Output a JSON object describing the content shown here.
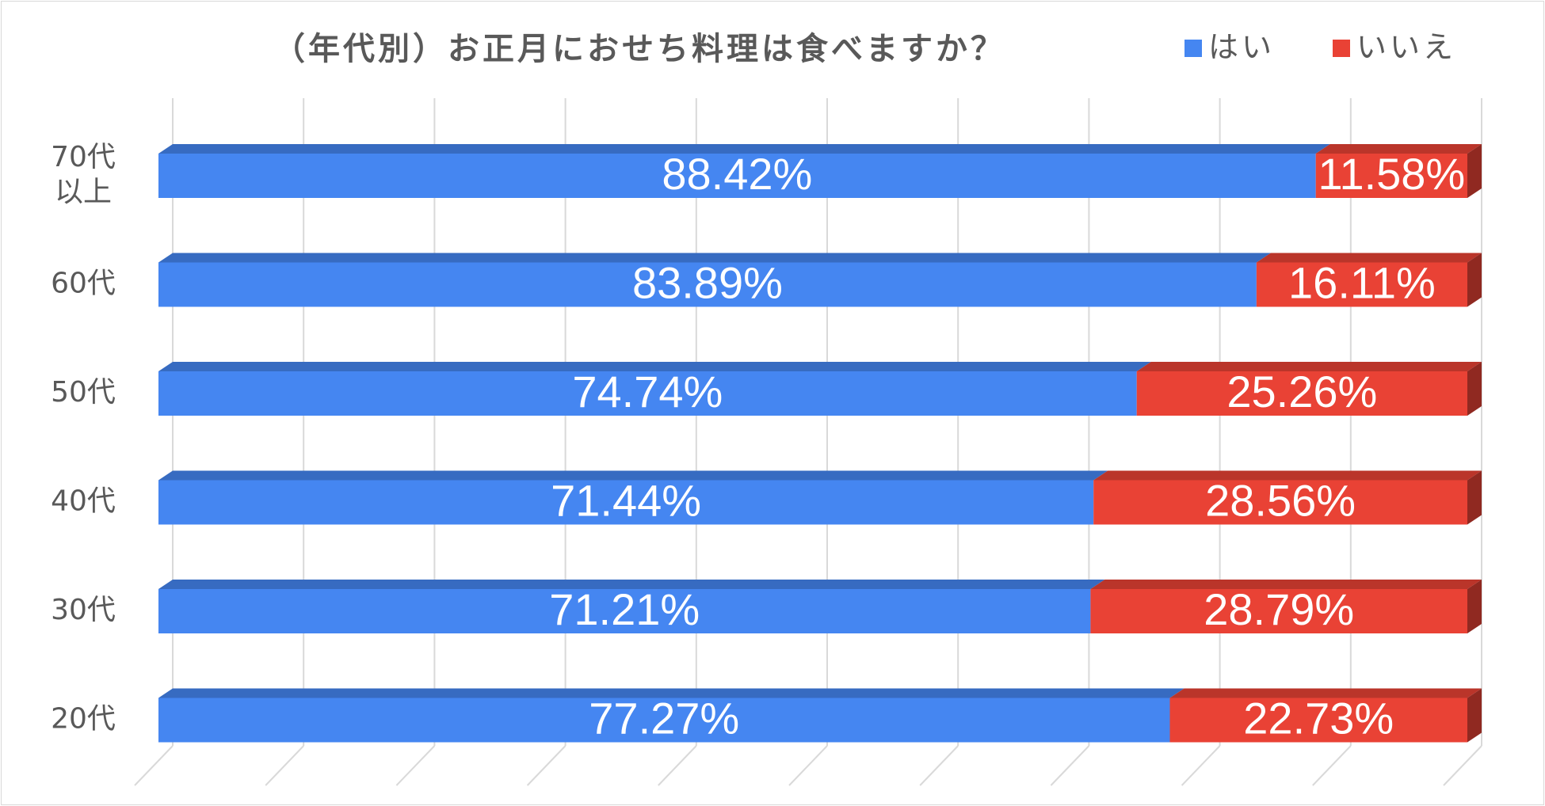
{
  "chart_data": {
    "type": "bar",
    "orientation": "horizontal",
    "stacked": true,
    "stack_mode": "percent",
    "title": "（年代別）お正月におせち料理は食べますか？",
    "xlabel": "",
    "ylabel": "",
    "xlim": [
      0,
      100
    ],
    "grid": true,
    "legend_position": "top-right",
    "style_3d": true,
    "categories": [
      [
        "70代",
        "以上"
      ],
      [
        "60代"
      ],
      [
        "50代"
      ],
      [
        "40代"
      ],
      [
        "30代"
      ],
      [
        "20代"
      ]
    ],
    "series": [
      {
        "name": "はい",
        "color": "#4586F1",
        "values": [
          88.42,
          83.89,
          74.74,
          71.44,
          71.21,
          77.27
        ],
        "labels": [
          "88.42%",
          "83.89%",
          "74.74%",
          "71.44%",
          "71.21%",
          "77.27%"
        ]
      },
      {
        "name": "いいえ",
        "color": "#E94235",
        "values": [
          11.58,
          16.11,
          25.26,
          28.56,
          28.79,
          22.73
        ],
        "labels": [
          "11.58%",
          "16.11%",
          "25.26%",
          "28.56%",
          "28.79%",
          "22.73%"
        ]
      }
    ],
    "colors": {
      "grid": "#D9D9D9",
      "axis_label": "#595959",
      "title": "#595959",
      "data_label": "#FFFFFF"
    }
  }
}
